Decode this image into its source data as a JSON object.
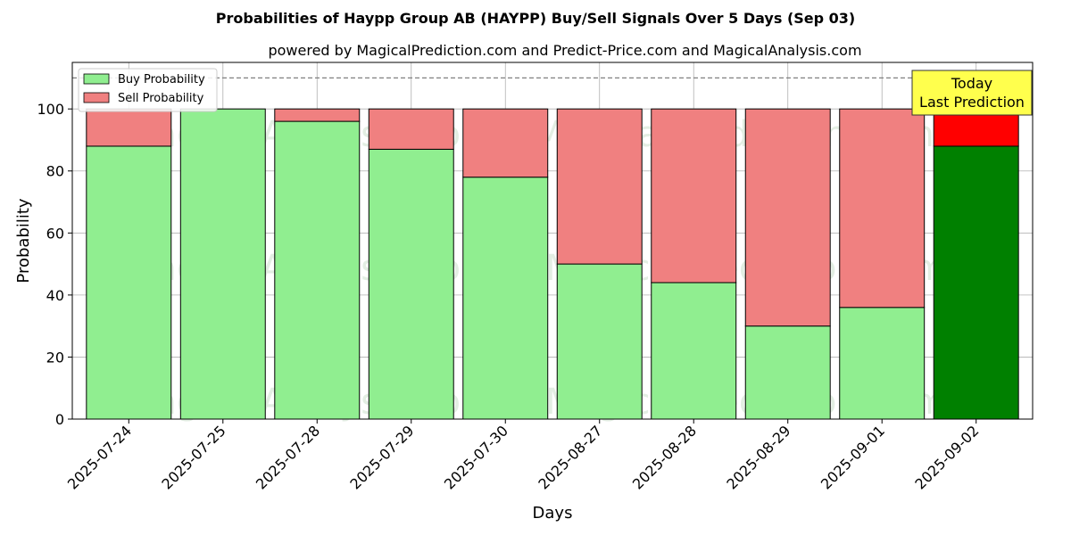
{
  "chart_data": {
    "type": "bar",
    "stacked": true,
    "title": "Probabilities of Haypp Group AB (HAYPP) Buy/Sell Signals Over 5 Days (Sep 03)",
    "subtitle": "powered by MagicalPrediction.com and Predict-Price.com and MagicalAnalysis.com",
    "xlabel": "Days",
    "ylabel": "Probability",
    "ylim": [
      0,
      115
    ],
    "yticks": [
      0,
      20,
      40,
      60,
      80,
      100
    ],
    "reference_line": 110,
    "grid": true,
    "legend_position": "top-left",
    "categories": [
      "2025-07-24",
      "2025-07-25",
      "2025-07-28",
      "2025-07-29",
      "2025-07-30",
      "2025-08-27",
      "2025-08-28",
      "2025-08-29",
      "2025-09-01",
      "2025-09-02"
    ],
    "series": [
      {
        "name": "Buy Probability",
        "values": [
          88,
          100,
          96,
          87,
          78,
          50,
          44,
          30,
          36,
          88
        ],
        "color": "#90EE90",
        "highlight_color": "#008000"
      },
      {
        "name": "Sell Probability",
        "values": [
          12,
          0,
          4,
          13,
          22,
          50,
          56,
          70,
          64,
          12
        ],
        "color": "#F08080",
        "highlight_color": "#FF0000"
      }
    ],
    "highlight_index": 9,
    "annotation": {
      "line1": "Today",
      "line2": "Last Prediction",
      "background": "#FFFF4D"
    },
    "watermarks": [
      "MagicalAnalysis.com",
      "MagicalPrediction.com",
      "MagicalAnalysis.com",
      "MagicalPrediction.com",
      "MagicalAnalysis.com",
      "MagicalPrediction.com"
    ]
  }
}
